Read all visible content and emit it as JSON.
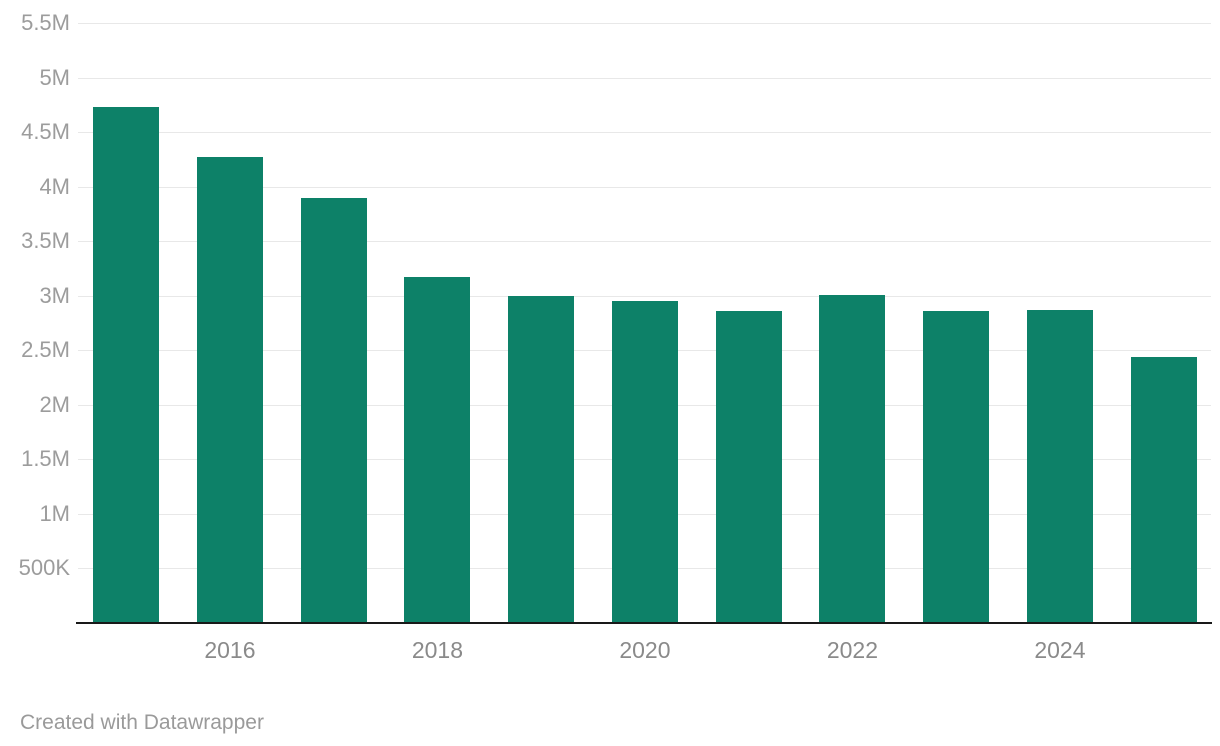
{
  "page": {
    "attribution": "Created with Datawrapper"
  },
  "chart_data": {
    "type": "bar",
    "title": "",
    "xlabel": "",
    "ylabel": "",
    "legend": "none",
    "grid": "horizontal-gridlines",
    "categories": [
      "2015",
      "2016",
      "2017",
      "2018",
      "2019",
      "2020",
      "2021",
      "2022",
      "2023",
      "2024",
      "2025"
    ],
    "values": [
      4730000,
      4270000,
      3900000,
      3170000,
      3000000,
      2950000,
      2860000,
      3010000,
      2860000,
      2870000,
      2440000
    ],
    "ylim": [
      0,
      5500000
    ],
    "y_ticks": [
      {
        "label": "5.5M",
        "value": 5500000
      },
      {
        "label": "5M",
        "value": 5000000
      },
      {
        "label": "4.5M",
        "value": 4500000
      },
      {
        "label": "4M",
        "value": 4000000
      },
      {
        "label": "3.5M",
        "value": 3500000
      },
      {
        "label": "3M",
        "value": 3000000
      },
      {
        "label": "2.5M",
        "value": 2500000
      },
      {
        "label": "2M",
        "value": 2000000
      },
      {
        "label": "1.5M",
        "value": 1500000
      },
      {
        "label": "1M",
        "value": 1000000
      },
      {
        "label": "500K",
        "value": 500000
      }
    ],
    "x_ticks": [
      {
        "label": "2016",
        "category_index": 1
      },
      {
        "label": "2018",
        "category_index": 3
      },
      {
        "label": "2020",
        "category_index": 5
      },
      {
        "label": "2022",
        "category_index": 7
      },
      {
        "label": "2024",
        "category_index": 9
      }
    ],
    "colors": {
      "bar": "#0d8168",
      "gridline": "#e8e8e8",
      "baseline": "#191919",
      "y_tick_label": "#9c9c9c",
      "x_tick_label": "#8a8a8a",
      "attribution": "#9a9a9a"
    }
  }
}
